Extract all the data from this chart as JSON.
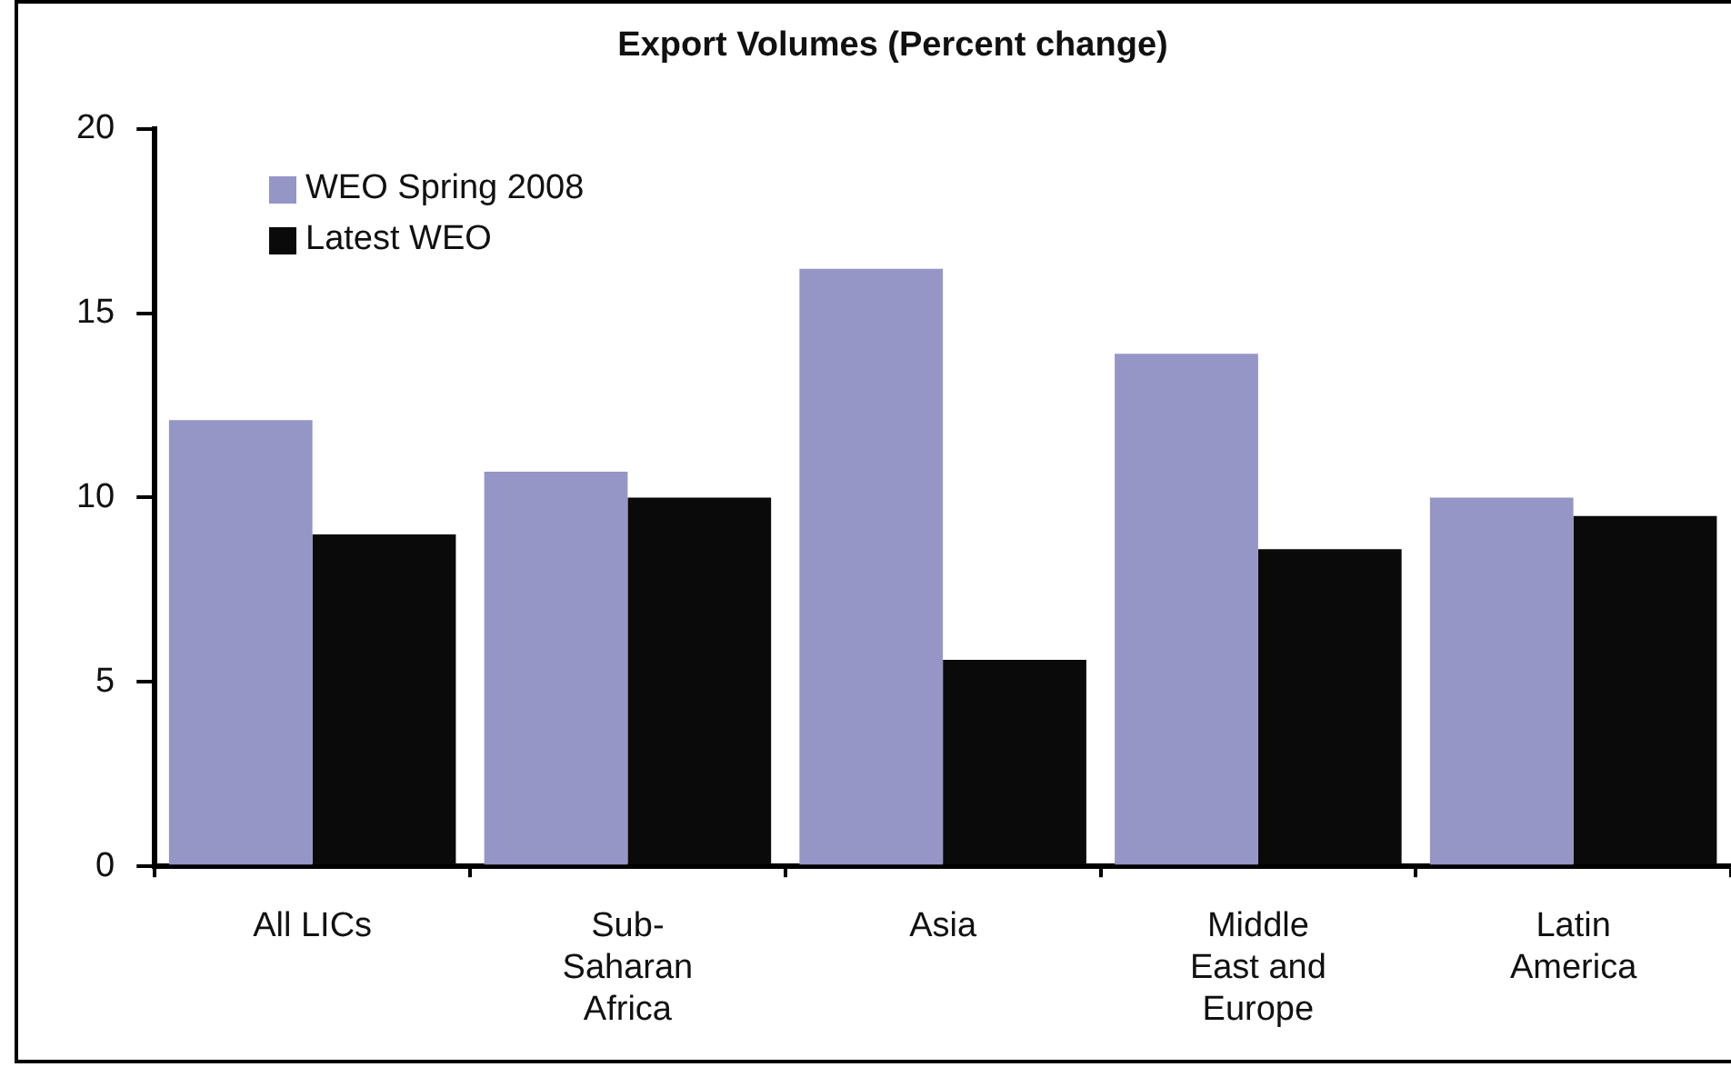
{
  "chart_data": {
    "type": "bar",
    "title": "Export Volumes (Percent change)",
    "categories": [
      "All LICs",
      "Sub-Saharan Africa",
      "Asia",
      "Middle East and Europe",
      "Latin America"
    ],
    "series": [
      {
        "name": "WEO Spring 2008",
        "color": "#9595c6",
        "values": [
          12.1,
          10.7,
          16.2,
          13.9,
          10.0
        ]
      },
      {
        "name": "Latest WEO",
        "color": "#0a0a0a",
        "values": [
          9.0,
          10.0,
          5.6,
          8.6,
          9.5
        ]
      }
    ],
    "ylim": [
      0,
      20
    ],
    "yticks": [
      0,
      5,
      10,
      15,
      20
    ],
    "grid": false,
    "legend": "top left"
  }
}
